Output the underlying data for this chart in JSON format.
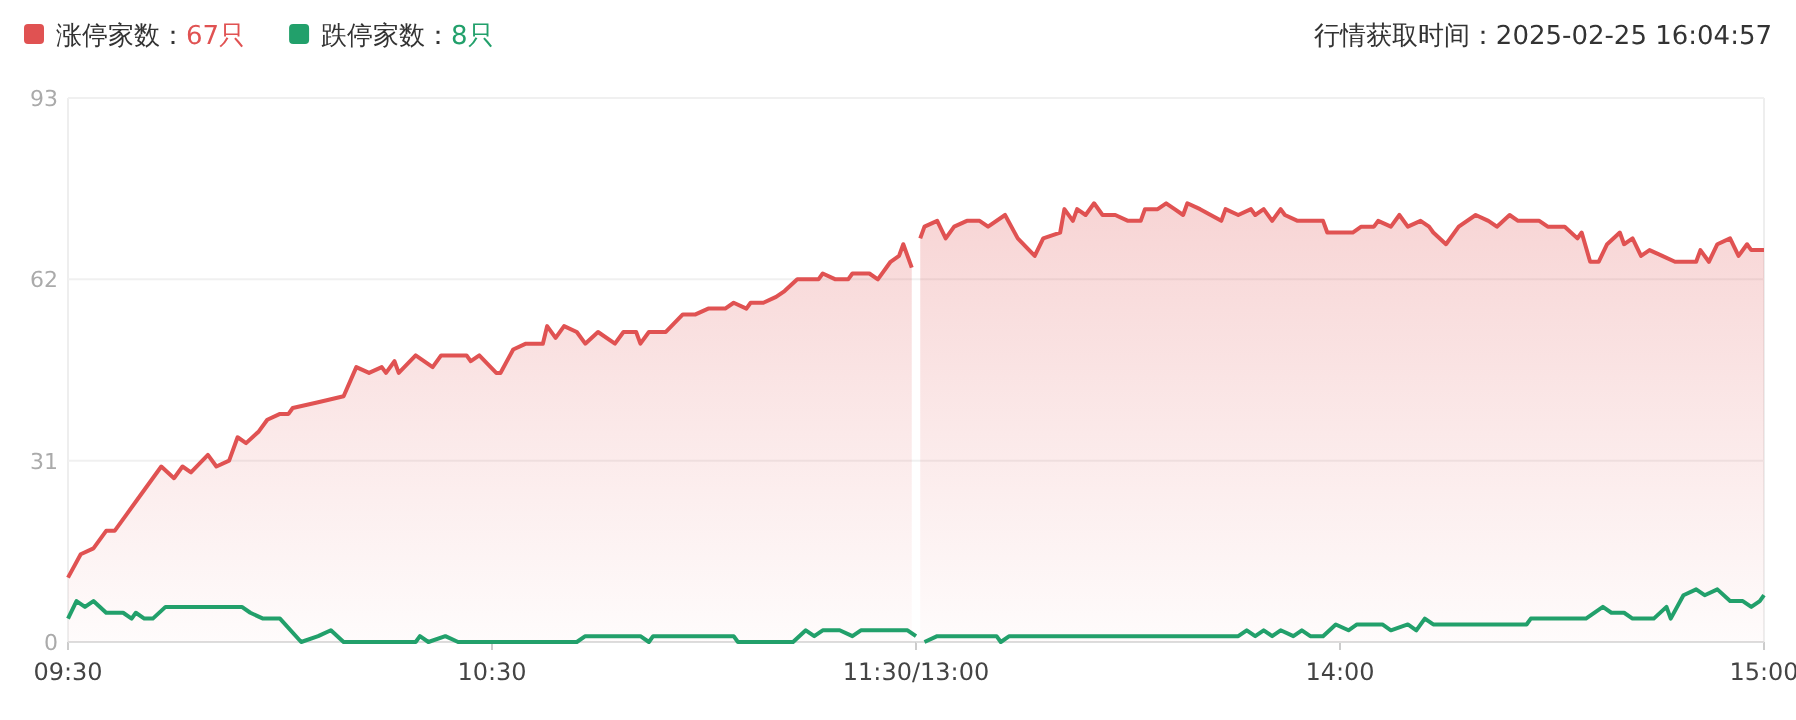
{
  "chart_data": [
    {
      "type": "area",
      "annotations": [
        "行情获取时间：2025-02-25 16:04:57"
      ],
      "xlim": [
        9.5,
        11.5
      ],
      "xticks": [
        {
          "value": 9.5,
          "label": "09:30"
        },
        {
          "value": 10.5,
          "label": "10:30"
        }
      ],
      "ylim": [
        0,
        93
      ],
      "yticks": [
        0,
        31,
        62,
        93
      ],
      "grid": "y",
      "legend": "top left",
      "series": [
        {
          "name": "涨停家数：67只",
          "color": "#e05252",
          "x": [
            9.5,
            9.53,
            9.56,
            9.59,
            9.61,
            9.64,
            9.67,
            9.72,
            9.75,
            9.77,
            9.79,
            9.83,
            9.85,
            9.88,
            9.9,
            9.92,
            9.95,
            9.97,
            10,
            10.02,
            10.03,
            10.09,
            10.15,
            10.18,
            10.21,
            10.24,
            10.25,
            10.27,
            10.28,
            10.32,
            10.36,
            10.38,
            10.44,
            10.45,
            10.47,
            10.51,
            10.52,
            10.55,
            10.58,
            10.62,
            10.63,
            10.65,
            10.67,
            10.7,
            10.72,
            10.75,
            10.79,
            10.81,
            10.84,
            10.85,
            10.87,
            10.91,
            10.95,
            10.98,
            11.01,
            11.05,
            11.07,
            11.1,
            11.11,
            11.14,
            11.17,
            11.19,
            11.22,
            11.27,
            11.28,
            11.31,
            11.34,
            11.35,
            11.39,
            11.41,
            11.44,
            11.46,
            11.47,
            11.49
          ],
          "values": [
            11,
            15,
            16,
            19,
            19,
            22,
            25,
            30,
            28,
            30,
            29,
            32,
            30,
            31,
            35,
            34,
            36,
            38,
            39,
            39,
            40,
            41,
            42,
            47,
            46,
            47,
            46,
            48,
            46,
            49,
            47,
            49,
            49,
            48,
            49,
            46,
            46,
            50,
            51,
            51,
            54,
            52,
            54,
            53,
            51,
            53,
            51,
            53,
            53,
            51,
            53,
            53,
            56,
            56,
            57,
            57,
            58,
            57,
            58,
            58,
            59,
            60,
            62,
            62,
            63,
            62,
            62,
            63,
            63,
            62,
            65,
            66,
            68,
            64
          ]
        },
        {
          "name": "跌停家数：8只",
          "type": "line",
          "color": "#22a06b",
          "x": [
            9.5,
            9.52,
            9.54,
            9.56,
            9.59,
            9.63,
            9.65,
            9.66,
            9.68,
            9.7,
            9.73,
            9.91,
            9.93,
            9.96,
            10,
            10.05,
            10.09,
            10.12,
            10.15,
            10.32,
            10.33,
            10.35,
            10.39,
            10.42,
            10.7,
            10.72,
            10.85,
            10.87,
            10.88,
            11.07,
            11.08,
            11.21,
            11.24,
            11.26,
            11.28,
            11.32,
            11.35,
            11.37,
            11.48,
            11.5
          ],
          "values": [
            4,
            7,
            6,
            7,
            5,
            5,
            4,
            5,
            4,
            4,
            6,
            6,
            5,
            4,
            4,
            0,
            1,
            2,
            0,
            0,
            1,
            0,
            1,
            0,
            0,
            1,
            1,
            0,
            1,
            1,
            0,
            0,
            2,
            1,
            2,
            2,
            1,
            2,
            2,
            1
          ]
        }
      ]
    },
    {
      "type": "area",
      "xlim": [
        13,
        15
      ],
      "xticks": [
        {
          "value": 13,
          "label": "11:30/13:00"
        },
        {
          "value": 14,
          "label": "14:00"
        },
        {
          "value": 15,
          "label": "15:00"
        }
      ],
      "ylim": [
        0,
        93
      ],
      "yticks": [
        0,
        31,
        62,
        93
      ],
      "grid": "y",
      "tick_labels": "x",
      "series": [
        {
          "color": "#e05252",
          "x": [
            13.01,
            13.02,
            13.05,
            13.07,
            13.09,
            13.12,
            13.15,
            13.17,
            13.21,
            13.24,
            13.28,
            13.3,
            13.34,
            13.35,
            13.37,
            13.38,
            13.4,
            13.42,
            13.44,
            13.47,
            13.5,
            13.53,
            13.54,
            13.57,
            13.59,
            13.61,
            13.63,
            13.64,
            13.67,
            13.72,
            13.73,
            13.76,
            13.79,
            13.8,
            13.82,
            13.84,
            13.86,
            13.87,
            13.9,
            13.96,
            13.97,
            14.03,
            14.05,
            14.08,
            14.09,
            14.12,
            14.14,
            14.16,
            14.19,
            14.21,
            14.22,
            14.25,
            14.28,
            14.32,
            14.35,
            14.37,
            14.4,
            14.42,
            14.47,
            14.49,
            14.53,
            14.56,
            14.57,
            14.59,
            14.61,
            14.63,
            14.66,
            14.67,
            14.69,
            14.71,
            14.73,
            14.76,
            14.79,
            14.84,
            14.85,
            14.87,
            14.89,
            14.92,
            14.94,
            14.96,
            14.97,
            15
          ],
          "values": [
            69,
            71,
            72,
            69,
            71,
            72,
            72,
            71,
            73,
            69,
            66,
            69,
            70,
            74,
            72,
            74,
            73,
            75,
            73,
            73,
            72,
            72,
            74,
            74,
            75,
            74,
            73,
            75,
            74,
            72,
            74,
            73,
            74,
            73,
            74,
            72,
            74,
            73,
            72,
            72,
            70,
            70,
            71,
            71,
            72,
            71,
            73,
            71,
            72,
            71,
            70,
            68,
            71,
            73,
            72,
            71,
            73,
            72,
            72,
            71,
            71,
            69,
            70,
            65,
            65,
            68,
            70,
            68,
            69,
            66,
            67,
            66,
            65,
            65,
            67,
            65,
            68,
            69,
            66,
            68,
            67,
            67
          ]
        },
        {
          "type": "line",
          "color": "#22a06b",
          "x": [
            13.02,
            13.05,
            13.19,
            13.2,
            13.22,
            13.75,
            13.76,
            13.78,
            13.8,
            13.82,
            13.84,
            13.86,
            13.89,
            13.91,
            13.93,
            13.96,
            13.99,
            14.02,
            14.04,
            14.1,
            14.12,
            14.16,
            14.18,
            14.2,
            14.22,
            14.44,
            14.45,
            14.58,
            14.62,
            14.64,
            14.67,
            14.69,
            14.74,
            14.77,
            14.78,
            14.81,
            14.84,
            14.86,
            14.89,
            14.92,
            14.95,
            14.97,
            14.99,
            15
          ],
          "values": [
            0,
            1,
            1,
            0,
            1,
            1,
            1,
            2,
            1,
            2,
            1,
            2,
            1,
            2,
            1,
            1,
            3,
            2,
            3,
            3,
            2,
            3,
            2,
            4,
            3,
            3,
            4,
            4,
            6,
            5,
            5,
            4,
            4,
            6,
            4,
            8,
            9,
            8,
            9,
            7,
            7,
            6,
            7,
            8
          ]
        }
      ]
    }
  ]
}
